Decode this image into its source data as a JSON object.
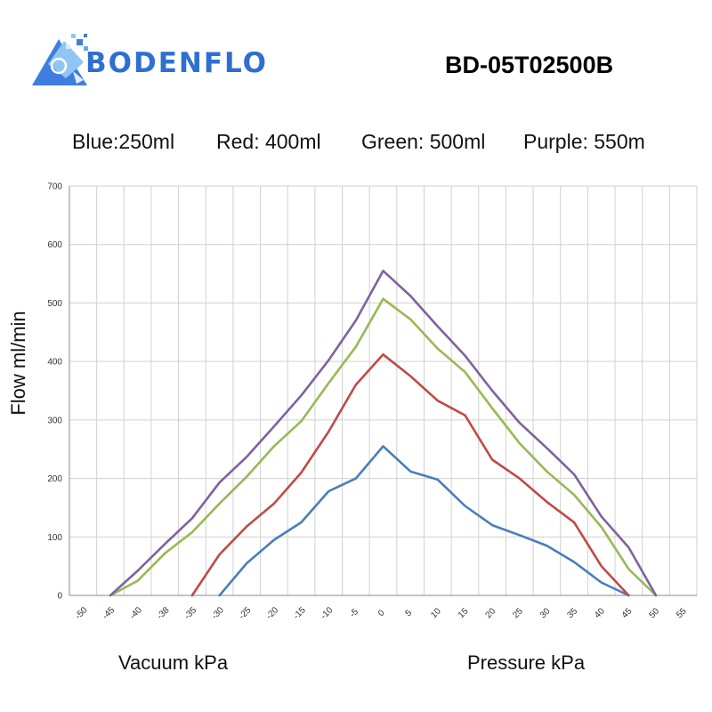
{
  "brand": {
    "name": "BODENFLO"
  },
  "model": "BD-05T02500B",
  "legend": [
    {
      "label": "Blue:250ml"
    },
    {
      "label": "Red: 400ml"
    },
    {
      "label": "Green: 500ml"
    },
    {
      "label": "Purple: 550m"
    }
  ],
  "colors": {
    "blue": "#4a7ebb",
    "red": "#be4b48",
    "green": "#98b954",
    "purple": "#7e62a1",
    "brand": "#2f6fd1",
    "grid": "#d0d0d0"
  },
  "chart_data": {
    "type": "line",
    "ylabel": "Flow ml/min",
    "xlabel_left": "Vacuum kPa",
    "xlabel_right": "Pressure kPa",
    "ylim": [
      0,
      700
    ],
    "yticks": [
      0,
      100,
      200,
      300,
      400,
      500,
      600,
      700
    ],
    "categories": [
      "-50",
      "-45",
      "-40",
      "-38",
      "-35",
      "-30",
      "-25",
      "-20",
      "-15",
      "-10",
      "-5",
      "0",
      "5",
      "10",
      "15",
      "20",
      "25",
      "30",
      "35",
      "40",
      "45",
      "50",
      "55"
    ],
    "grid": true,
    "series": [
      {
        "color_key": "blue",
        "values": [
          null,
          null,
          null,
          null,
          null,
          0,
          55,
          95,
          125,
          178,
          200,
          255,
          212,
          198,
          153,
          120,
          103,
          85,
          57,
          22,
          0,
          null,
          null
        ]
      },
      {
        "color_key": "red",
        "values": [
          null,
          null,
          null,
          null,
          0,
          70,
          118,
          157,
          210,
          280,
          360,
          412,
          375,
          333,
          308,
          232,
          200,
          160,
          125,
          50,
          0,
          null,
          null
        ]
      },
      {
        "color_key": "green",
        "values": [
          null,
          0,
          25,
          72,
          108,
          157,
          203,
          255,
          298,
          363,
          425,
          507,
          472,
          422,
          382,
          320,
          260,
          212,
          172,
          117,
          45,
          0,
          null
        ]
      },
      {
        "color_key": "purple",
        "values": [
          null,
          0,
          42,
          88,
          132,
          193,
          237,
          289,
          342,
          402,
          470,
          555,
          512,
          460,
          410,
          350,
          295,
          252,
          207,
          135,
          82,
          0,
          null
        ]
      }
    ]
  }
}
